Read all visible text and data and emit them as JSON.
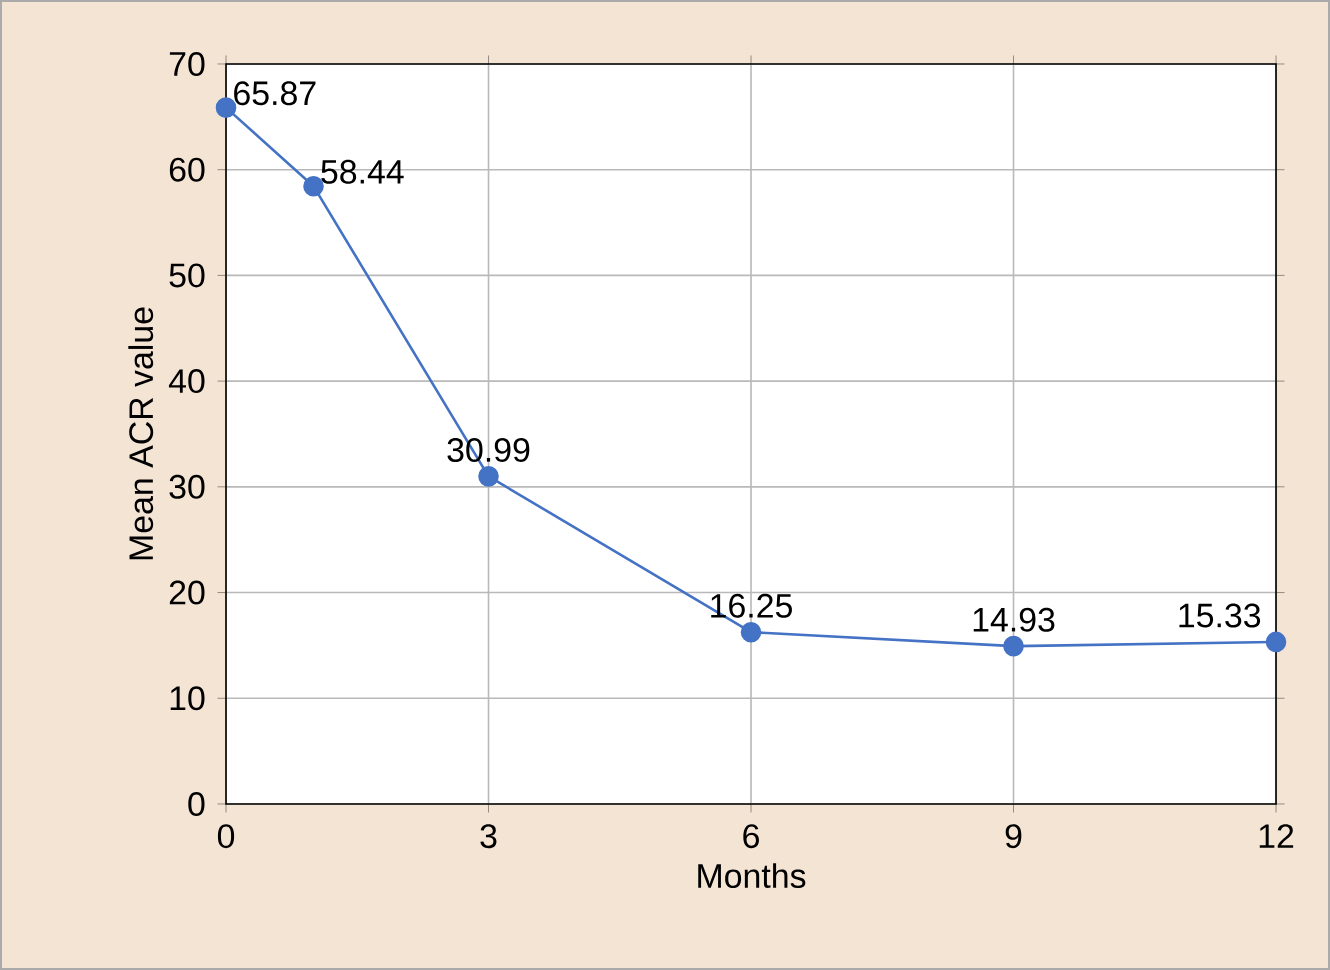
{
  "chart_data": {
    "type": "line",
    "xlabel": "Months",
    "ylabel": "Mean ACR value",
    "x": [
      0,
      1,
      3,
      6,
      9,
      12
    ],
    "series": [
      {
        "color": "#4472c4",
        "values": [
          65.87,
          58.44,
          30.99,
          16.25,
          14.93,
          15.33
        ]
      }
    ],
    "xlim": [
      0,
      12
    ],
    "xticks": [
      0,
      3,
      6,
      9,
      12
    ],
    "ylim": [
      0,
      70
    ],
    "yticks": [
      0,
      10,
      20,
      30,
      40,
      50,
      60,
      70
    ],
    "grid": true,
    "marker": "circle",
    "line_style": "solid",
    "data_labels": true
  }
}
